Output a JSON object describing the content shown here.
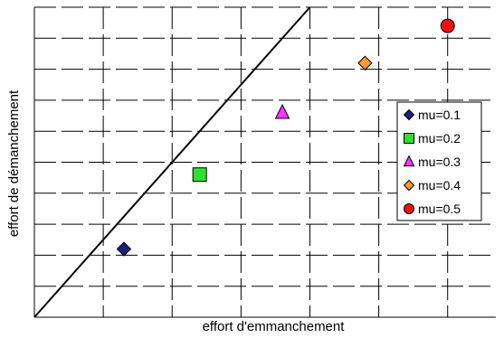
{
  "chart_data": {
    "type": "scatter",
    "xlabel": "effort d'emmanchement",
    "ylabel": "effort de démanchement",
    "xlim": [
      0,
      6.7
    ],
    "ylim": [
      0,
      10
    ],
    "grid": true,
    "ticks_labeled": false,
    "legend_position": "right",
    "reference_line": {
      "from": [
        0,
        0
      ],
      "to": [
        4,
        10
      ],
      "color": "#000000"
    },
    "series": [
      {
        "name": "mu=0.1",
        "marker": "diamond",
        "color": "#1f1f7a",
        "x": 1.3,
        "y": 2.2
      },
      {
        "name": "mu=0.2",
        "marker": "square",
        "color": "#33dd33",
        "x": 2.4,
        "y": 4.6
      },
      {
        "name": "mu=0.3",
        "marker": "triangle",
        "color": "#ff33ff",
        "x": 3.6,
        "y": 6.6
      },
      {
        "name": "mu=0.4",
        "marker": "diamond",
        "color": "#ff9933",
        "x": 4.8,
        "y": 8.2
      },
      {
        "name": "mu=0.5",
        "marker": "circle",
        "color": "#ee1111",
        "x": 6.0,
        "y": 9.4
      }
    ]
  }
}
